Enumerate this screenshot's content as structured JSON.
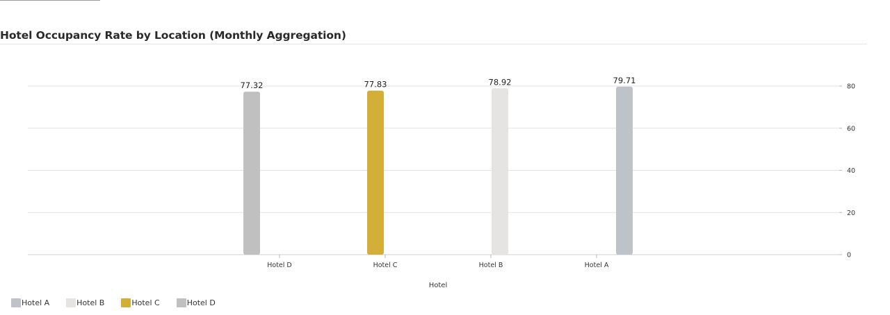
{
  "chart_data": {
    "type": "bar",
    "title": "Hotel Occupancy Rate by Location (Monthly Aggregation)",
    "xlabel": "Hotel",
    "ylabel": "",
    "categories": [
      "Hotel D",
      "Hotel C",
      "Hotel B",
      "Hotel A"
    ],
    "values": [
      77.32,
      77.83,
      78.92,
      79.71
    ],
    "value_labels": [
      "77.32",
      "77.83",
      "78.92",
      "79.71"
    ],
    "colors": [
      "#c0c0c0",
      "#d4af37",
      "#e5e4e2",
      "#bdc3c9"
    ],
    "ylim": [
      0,
      80
    ],
    "yticks": [
      "0",
      "20",
      "40",
      "60",
      "80"
    ],
    "y_axis_position": "right",
    "grid": true,
    "legend": {
      "placement": "bottom-left",
      "entries": [
        {
          "label": "Hotel A",
          "color": "#bdc3c9"
        },
        {
          "label": "Hotel B",
          "color": "#e5e4e2"
        },
        {
          "label": "Hotel C",
          "color": "#d4af37"
        },
        {
          "label": "Hotel D",
          "color": "#c0c0c0"
        }
      ]
    }
  }
}
